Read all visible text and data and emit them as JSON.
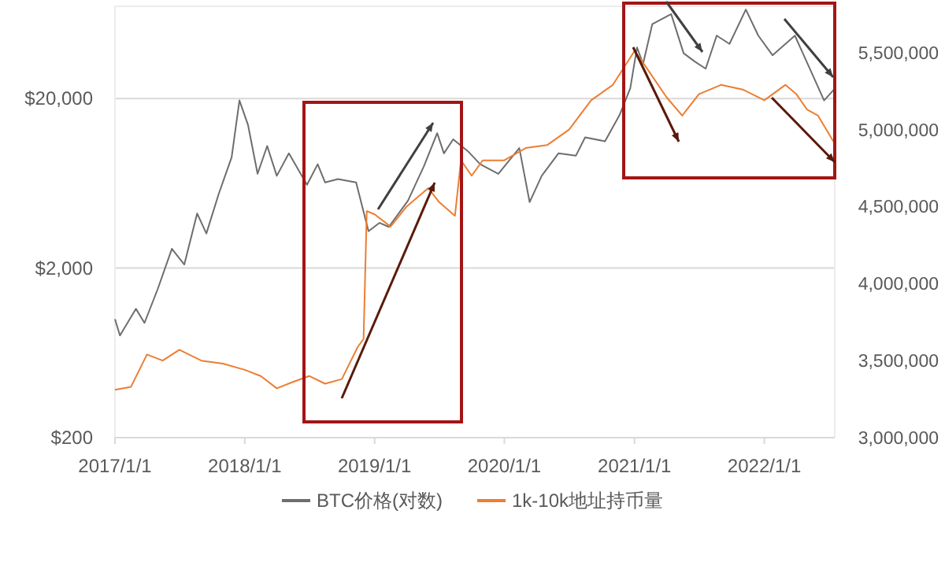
{
  "chart_data": {
    "type": "line",
    "legend": "bottom",
    "grid": "y",
    "log": "y",
    "marker": "none",
    "line_style": "solid",
    "xlim": [
      "2017-01-01",
      "2022-07-18"
    ],
    "xticks": [
      {
        "value": "2017-01-01",
        "label": "2017/1/1"
      },
      {
        "value": "2018-01-01",
        "label": "2018/1/1"
      },
      {
        "value": "2019-01-01",
        "label": "2019/1/1"
      },
      {
        "value": "2020-01-01",
        "label": "2020/1/1"
      },
      {
        "value": "2021-01-01",
        "label": "2021/1/1"
      },
      {
        "value": "2022-01-01",
        "label": "2022/1/1"
      }
    ],
    "ylim": [
      200,
      70000
    ],
    "yticks": [
      {
        "value": 200,
        "label": "$200"
      },
      {
        "value": 2000,
        "label": "$2,000"
      },
      {
        "value": 20000,
        "label": "$20,000"
      }
    ],
    "y2lim": [
      3000000,
      5800000
    ],
    "y2ticks": [
      {
        "value": 3000000,
        "label": "3,000,000"
      },
      {
        "value": 3500000,
        "label": "3,500,000"
      },
      {
        "value": 4000000,
        "label": "4,000,000"
      },
      {
        "value": 4500000,
        "label": "4,500,000"
      },
      {
        "value": 5000000,
        "label": "5,000,000"
      },
      {
        "value": 5500000,
        "label": "5,500,000"
      }
    ],
    "series": [
      {
        "name": "BTC价格(对数)",
        "color": "#6e6e6e",
        "x": [
          "2017-01-01",
          "2017-01-15",
          "2017-03-01",
          "2017-03-25",
          "2017-05-01",
          "2017-06-10",
          "2017-07-15",
          "2017-08-20",
          "2017-09-15",
          "2017-10-20",
          "2017-11-25",
          "2017-12-17",
          "2018-01-10",
          "2018-02-06",
          "2018-03-05",
          "2018-04-01",
          "2018-05-05",
          "2018-06-25",
          "2018-07-25",
          "2018-08-15",
          "2018-09-20",
          "2018-11-10",
          "2018-12-15",
          "2019-01-15",
          "2019-02-10",
          "2019-04-05",
          "2019-05-20",
          "2019-06-26",
          "2019-07-15",
          "2019-08-10",
          "2019-09-20",
          "2019-10-25",
          "2019-12-15",
          "2020-02-12",
          "2020-03-12",
          "2020-04-15",
          "2020-06-01",
          "2020-07-20",
          "2020-08-15",
          "2020-10-10",
          "2020-11-20",
          "2020-12-20",
          "2021-01-08",
          "2021-01-25",
          "2021-02-20",
          "2021-04-14",
          "2021-05-19",
          "2021-06-20",
          "2021-07-20",
          "2021-08-20",
          "2021-09-25",
          "2021-11-10",
          "2021-12-15",
          "2022-01-24",
          "2022-03-28",
          "2022-05-12",
          "2022-06-18",
          "2022-07-15"
        ],
        "values": [
          1000,
          800,
          1150,
          950,
          1500,
          2600,
          2100,
          4200,
          3200,
          5500,
          9000,
          19500,
          14000,
          7200,
          10500,
          7000,
          9500,
          6200,
          8200,
          6400,
          6700,
          6400,
          3300,
          3700,
          3500,
          5000,
          8000,
          12500,
          9500,
          11500,
          9800,
          8200,
          7200,
          10200,
          4900,
          7000,
          9500,
          9200,
          11800,
          11200,
          16000,
          23000,
          40000,
          32000,
          55000,
          63000,
          37000,
          33000,
          30000,
          47000,
          42000,
          67000,
          47000,
          36000,
          47000,
          29000,
          19500,
          22500
        ]
      },
      {
        "name": "1k-10k地址持币量",
        "color": "#ed7d31",
        "axis": "y2",
        "x": [
          "2017-01-01",
          "2017-02-15",
          "2017-04-01",
          "2017-05-15",
          "2017-07-01",
          "2017-09-01",
          "2017-11-01",
          "2018-01-01",
          "2018-02-15",
          "2018-04-01",
          "2018-05-15",
          "2018-07-01",
          "2018-08-15",
          "2018-10-01",
          "2018-11-15",
          "2018-12-01",
          "2018-12-10",
          "2019-01-01",
          "2019-02-15",
          "2019-04-01",
          "2019-06-01",
          "2019-07-01",
          "2019-08-15",
          "2019-09-01",
          "2019-10-01",
          "2019-11-01",
          "2020-01-01",
          "2020-03-01",
          "2020-05-01",
          "2020-07-01",
          "2020-09-01",
          "2020-11-01",
          "2021-01-01",
          "2021-02-01",
          "2021-04-01",
          "2021-05-15",
          "2021-07-01",
          "2021-09-01",
          "2021-11-01",
          "2022-01-01",
          "2022-03-01",
          "2022-04-01",
          "2022-05-01",
          "2022-06-01",
          "2022-07-15"
        ],
        "values": [
          3310000,
          3330000,
          3540000,
          3500000,
          3570000,
          3500000,
          3480000,
          3440000,
          3400000,
          3320000,
          3360000,
          3400000,
          3350000,
          3380000,
          3590000,
          3640000,
          4470000,
          4450000,
          4370000,
          4500000,
          4620000,
          4530000,
          4440000,
          4800000,
          4700000,
          4800000,
          4800000,
          4880000,
          4900000,
          5000000,
          5190000,
          5290000,
          5510000,
          5410000,
          5210000,
          5090000,
          5230000,
          5290000,
          5260000,
          5190000,
          5290000,
          5230000,
          5130000,
          5090000,
          4920000
        ]
      }
    ]
  }
}
